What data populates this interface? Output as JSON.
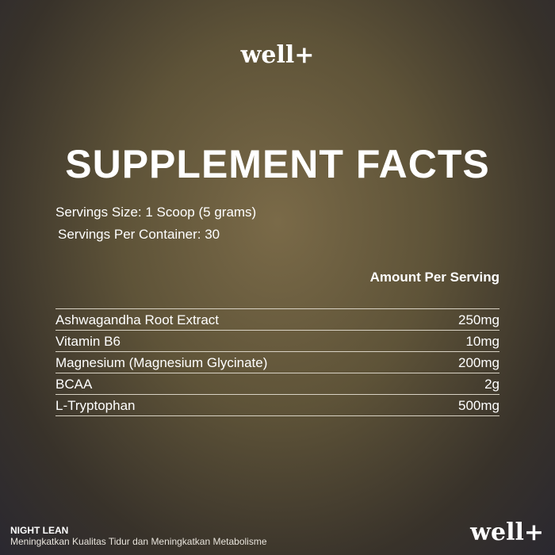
{
  "header": {
    "logo": "well+",
    "title": "SUPPLEMENT FACTS"
  },
  "serving": {
    "size": "Servings Size: 1 Scoop (5 grams)",
    "per_container": "Servings Per Container: 30"
  },
  "table": {
    "header": "Amount Per Serving",
    "rows": [
      [
        "Ashwagandha Root Extract",
        "250mg"
      ],
      [
        "Vitamin B6",
        "10mg"
      ],
      [
        "Magnesium (Magnesium Glycinate)",
        "200mg"
      ],
      [
        "BCAA",
        "2g"
      ],
      [
        "L-Tryptophan",
        "500mg"
      ]
    ]
  },
  "footer": {
    "product": "NIGHT LEAN",
    "tagline": "Meningkatkan Kualitas Tidur dan Meningkatkan Metabolisme",
    "logo": "well+"
  }
}
